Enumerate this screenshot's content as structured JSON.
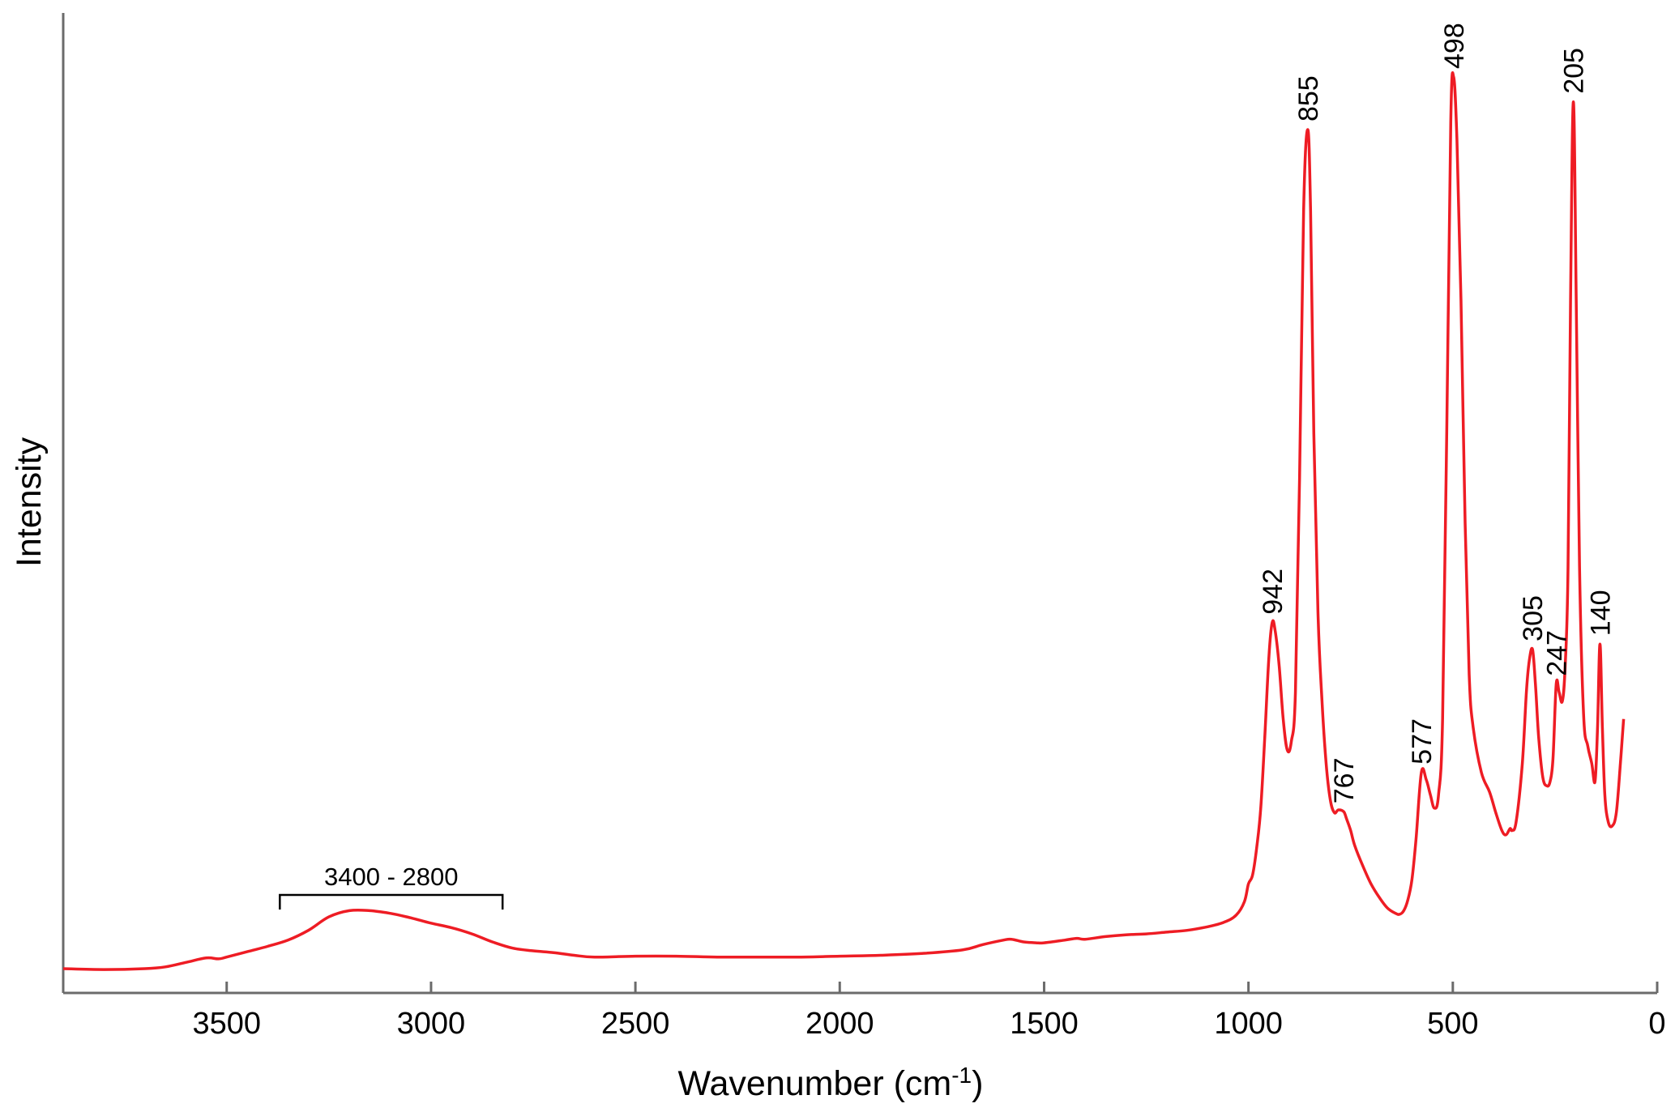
{
  "chart_data": {
    "type": "line",
    "title": "",
    "xlabel": "Wavenumber (cm",
    "xlabel_superscript": "-1",
    "xlabel_suffix": ")",
    "ylabel": "Intensity",
    "xlim": [
      3900,
      0
    ],
    "ylim": [
      0,
      100
    ],
    "x_reversed": true,
    "grid": false,
    "legend": "none",
    "line_color": "#ee1c24",
    "x_ticks": [
      3500,
      3000,
      2500,
      2000,
      1500,
      1000,
      500,
      0
    ],
    "x_tick_labels": [
      "3500",
      "3000",
      "2500",
      "2000",
      "1500",
      "1000",
      "500",
      "0"
    ],
    "peak_labels": [
      {
        "text": "942",
        "x": 942,
        "y": 38.8
      },
      {
        "text": "855",
        "x": 855,
        "y": 94.1
      },
      {
        "text": "767",
        "x": 767,
        "y": 17.6
      },
      {
        "text": "577",
        "x": 577,
        "y": 22.0
      },
      {
        "text": "498",
        "x": 498,
        "y": 100.0
      },
      {
        "text": "305",
        "x": 305,
        "y": 35.8
      },
      {
        "text": "247",
        "x": 247,
        "y": 31.9
      },
      {
        "text": "205",
        "x": 205,
        "y": 97.2
      },
      {
        "text": "140",
        "x": 140,
        "y": 36.4
      }
    ],
    "bracket": {
      "text": "3400 - 2800",
      "x1": 3370,
      "x2": 2825
    },
    "series": [
      {
        "x": [
          3900,
          3800,
          3700,
          3650,
          3600,
          3550,
          3520,
          3500,
          3450,
          3400,
          3350,
          3300,
          3250,
          3200,
          3150,
          3100,
          3050,
          3000,
          2950,
          2900,
          2850,
          2800,
          2750,
          2700,
          2650,
          2600,
          2500,
          2400,
          2300,
          2200,
          2100,
          2000,
          1900,
          1800,
          1700,
          1650,
          1600,
          1580,
          1550,
          1520,
          1500,
          1450,
          1420,
          1400,
          1350,
          1300,
          1250,
          1200,
          1150,
          1100,
          1060,
          1030,
          1010,
          1000,
          990,
          980,
          970,
          960,
          950,
          942,
          935,
          925,
          915,
          905,
          895,
          885,
          875,
          865,
          855,
          848,
          840,
          830,
          820,
          810,
          800,
          790,
          780,
          767,
          760,
          750,
          740,
          720,
          700,
          680,
          660,
          640,
          630,
          620,
          610,
          600,
          590,
          577,
          565,
          555,
          545,
          535,
          525,
          515,
          505,
          498,
          490,
          480,
          470,
          460,
          450,
          430,
          410,
          395,
          380,
          370,
          360,
          355,
          345,
          330,
          320,
          313,
          305,
          298,
          290,
          280,
          270,
          262,
          255,
          247,
          240,
          232,
          225,
          218,
          212,
          205,
          198,
          190,
          180,
          170,
          160,
          152,
          146,
          140,
          134,
          128,
          120,
          110,
          100,
          90,
          82
        ],
        "y": [
          0.0,
          -0.1,
          0.0,
          0.2,
          0.7,
          1.2,
          1.1,
          1.3,
          1.9,
          2.5,
          3.2,
          4.3,
          5.8,
          6.5,
          6.5,
          6.2,
          5.7,
          5.1,
          4.6,
          3.9,
          3.0,
          2.3,
          2.0,
          1.8,
          1.5,
          1.3,
          1.4,
          1.4,
          1.3,
          1.3,
          1.3,
          1.4,
          1.5,
          1.7,
          2.1,
          2.7,
          3.2,
          3.3,
          3.0,
          2.9,
          2.9,
          3.2,
          3.4,
          3.3,
          3.6,
          3.8,
          3.9,
          4.1,
          4.3,
          4.7,
          5.2,
          6.0,
          7.5,
          9.5,
          10.5,
          13.5,
          18.0,
          26.0,
          35.0,
          38.8,
          38.0,
          34.0,
          28.0,
          24.5,
          25.5,
          31.0,
          55.0,
          85.0,
          94.1,
          85.0,
          60.0,
          40.0,
          30.0,
          23.0,
          19.0,
          17.5,
          17.8,
          17.6,
          16.8,
          15.5,
          13.8,
          11.5,
          9.5,
          8.0,
          6.8,
          6.2,
          6.1,
          6.5,
          7.7,
          10.0,
          14.5,
          22.0,
          21.2,
          19.5,
          18.0,
          19.5,
          28.0,
          60.0,
          95.0,
          100.0,
          93.0,
          75.0,
          50.0,
          33.0,
          27.0,
          22.0,
          19.8,
          17.5,
          15.5,
          15.0,
          15.7,
          15.5,
          16.5,
          23.0,
          31.0,
          34.5,
          35.8,
          32.0,
          26.0,
          21.5,
          20.5,
          21.0,
          23.5,
          31.9,
          31.0,
          30.0,
          34.0,
          45.0,
          75.0,
          97.2,
          75.0,
          45.0,
          28.5,
          25.0,
          23.0,
          21.0,
          27.0,
          36.4,
          27.0,
          19.5,
          16.5,
          16.0,
          17.5,
          23.0,
          28.0
        ]
      }
    ]
  }
}
